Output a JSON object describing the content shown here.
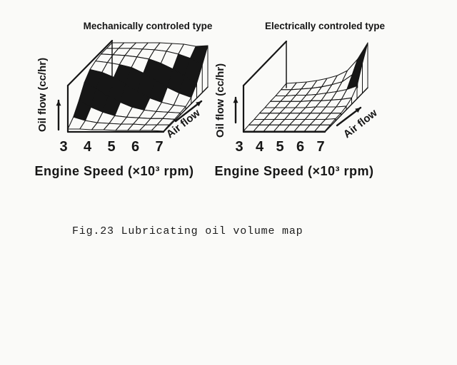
{
  "colors": {
    "ink": "#161616",
    "paper": "#fafaf8"
  },
  "caption": {
    "text": "Fig.23 Lubricating oil volume map"
  },
  "chart_data": [
    {
      "id": "mechanical",
      "type": "surface",
      "title": "Mechanically controled type",
      "xlabel": "Engine Speed (×10³ rpm)",
      "x_tick_labels": [
        "3",
        "4",
        "5",
        "6",
        "7"
      ],
      "x_values": [
        3,
        3.5,
        4,
        4.5,
        5,
        5.5,
        6,
        6.5,
        7
      ],
      "ylabel": "Air flow",
      "y_note": "air-flow axis is qualitative (arrow only, no tick labels shown)",
      "zlabel": "Oil flow (cc/hr)",
      "z_note": "oil-flow axis has no numeric scale; grid values are relative estimates (0-63)",
      "z_grid": [
        [
          4,
          4,
          3,
          3,
          2,
          2,
          2,
          2,
          1
        ],
        [
          13,
          8,
          5,
          4,
          3,
          3,
          2,
          2,
          2
        ],
        [
          28,
          19,
          12,
          7,
          5,
          4,
          3,
          3,
          2
        ],
        [
          46,
          37,
          26,
          18,
          11,
          7,
          5,
          4,
          3
        ],
        [
          56,
          52,
          45,
          35,
          25,
          16,
          10,
          6,
          4
        ],
        [
          60,
          58,
          55,
          51,
          43,
          33,
          23,
          15,
          9
        ],
        [
          62,
          61,
          60,
          58,
          55,
          49,
          41,
          31,
          21
        ],
        [
          62,
          62,
          62,
          61,
          60,
          58,
          54,
          48,
          39
        ],
        [
          62,
          62,
          62,
          62,
          62,
          61,
          60,
          57,
          58
        ]
      ]
    },
    {
      "id": "electrical",
      "type": "surface",
      "title": "Electrically controled type",
      "xlabel": "Engine Speed (×10³ rpm)",
      "x_tick_labels": [
        "3",
        "4",
        "5",
        "6",
        "7"
      ],
      "x_values": [
        3,
        3.5,
        4,
        4.5,
        5,
        5.5,
        6,
        6.5,
        7
      ],
      "ylabel": "Air flow",
      "y_note": "air-flow axis is qualitative (arrow only, no tick labels shown)",
      "zlabel": "Oil flow (cc/hr)",
      "z_note": "oil-flow axis has no numeric scale; grid values are relative estimates (0-63)",
      "z_grid": [
        [
          1,
          1,
          1,
          1,
          1,
          1,
          1,
          1,
          1
        ],
        [
          2,
          2,
          2,
          2,
          2,
          2,
          2,
          2,
          2
        ],
        [
          2,
          2,
          2,
          2,
          2,
          2,
          2,
          2,
          3
        ],
        [
          3,
          3,
          3,
          3,
          3,
          3,
          3,
          3,
          3
        ],
        [
          3,
          3,
          3,
          3,
          3,
          4,
          4,
          4,
          5
        ],
        [
          4,
          4,
          4,
          4,
          5,
          5,
          6,
          7,
          9
        ],
        [
          4,
          4,
          5,
          5,
          6,
          8,
          10,
          13,
          18
        ],
        [
          5,
          5,
          6,
          7,
          9,
          12,
          16,
          26,
          42
        ],
        [
          6,
          7,
          8,
          10,
          13,
          17,
          24,
          40,
          63
        ]
      ]
    }
  ]
}
